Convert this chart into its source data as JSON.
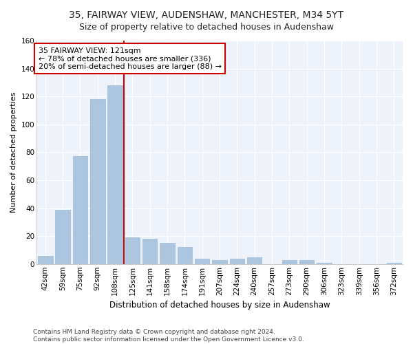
{
  "title": "35, FAIRWAY VIEW, AUDENSHAW, MANCHESTER, M34 5YT",
  "subtitle": "Size of property relative to detached houses in Audenshaw",
  "xlabel": "Distribution of detached houses by size in Audenshaw",
  "ylabel": "Number of detached properties",
  "categories": [
    "42sqm",
    "59sqm",
    "75sqm",
    "92sqm",
    "108sqm",
    "125sqm",
    "141sqm",
    "158sqm",
    "174sqm",
    "191sqm",
    "207sqm",
    "224sqm",
    "240sqm",
    "257sqm",
    "273sqm",
    "290sqm",
    "306sqm",
    "323sqm",
    "339sqm",
    "356sqm",
    "372sqm"
  ],
  "values": [
    6,
    39,
    77,
    118,
    128,
    19,
    18,
    15,
    12,
    4,
    3,
    4,
    5,
    0,
    3,
    3,
    1,
    0,
    0,
    0,
    1
  ],
  "bar_color": "#adc6e0",
  "bar_edge_color": "#9ab8d8",
  "vline_x": 4.5,
  "vline_color": "#cc0000",
  "annotation_text": "35 FAIRWAY VIEW: 121sqm\n← 78% of detached houses are smaller (336)\n20% of semi-detached houses are larger (88) →",
  "annotation_box_color": "#ffffff",
  "annotation_box_edge": "#cc0000",
  "ylim": [
    0,
    160
  ],
  "yticks": [
    0,
    20,
    40,
    60,
    80,
    100,
    120,
    140,
    160
  ],
  "footer_line1": "Contains HM Land Registry data © Crown copyright and database right 2024.",
  "footer_line2": "Contains public sector information licensed under the Open Government Licence v3.0.",
  "title_fontsize": 10,
  "xlabel_fontsize": 8.5,
  "ylabel_fontsize": 8,
  "tick_fontsize": 7.5,
  "annotation_fontsize": 8,
  "footer_fontsize": 6.5,
  "bg_color": "#edf2fb",
  "fig_bg_color": "#ffffff",
  "grid_color": "#ffffff",
  "spine_color": "#cccccc"
}
